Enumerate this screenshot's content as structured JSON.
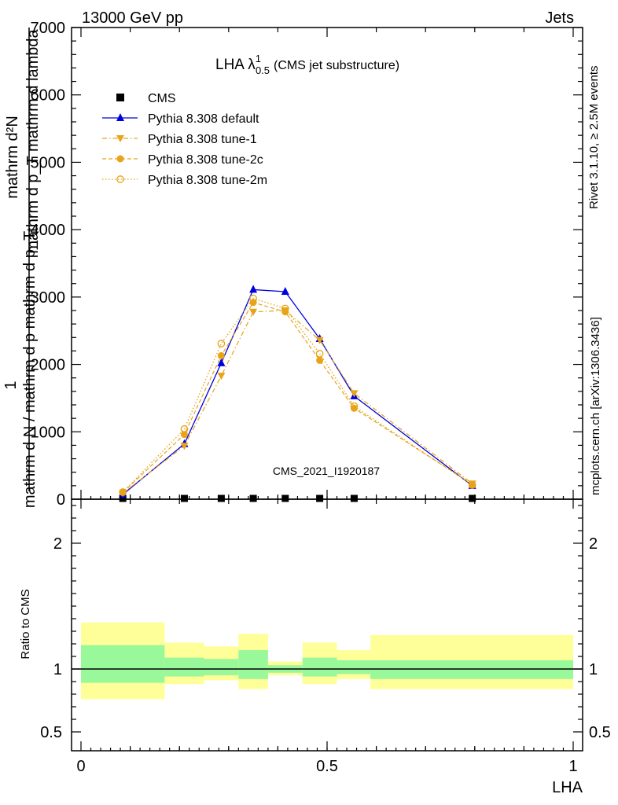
{
  "header": {
    "left": "13000 GeV pp",
    "right": "Jets"
  },
  "side_labels": {
    "rivet": "Rivet 3.1.10, ≥ 2.5M events",
    "mcplots": "mcplots.cern.ch [arXiv:1306.3436]"
  },
  "watermark": "CMS_2021_I1920187",
  "colors": {
    "cms": "#000000",
    "default": "#0000dd",
    "tunes": "#e8a317",
    "band_inner": "#99f899",
    "band_outer": "#ffff99"
  },
  "chart_data": [
    {
      "type": "line",
      "panel": "main",
      "title": "LHA λ",
      "title_sup": "1",
      "title_sub": "0.5",
      "title_note": "(CMS jet substructure)",
      "ylabel_top": "1",
      "ylabel_bottom": "mathrm d N / mathrm d p mathrm d p_T",
      "ylabel_numerator": "mathrm d²N",
      "ylabel_denominator": "mathrm d p_T mathrm d lambda",
      "xlim": [
        0,
        1
      ],
      "ylim": [
        0,
        7000
      ],
      "y_ticks": [
        0,
        1000,
        2000,
        3000,
        4000,
        5000,
        6000,
        7000
      ],
      "y_tick_labels": [
        "0",
        "1000",
        "2000",
        "3000",
        "4000",
        "5000",
        "6000",
        "7000"
      ],
      "legend_position": "top-left",
      "series": [
        {
          "name": "CMS",
          "marker": "square",
          "line": "none",
          "x": [
            0.085,
            0.21,
            0.285,
            0.35,
            0.415,
            0.485,
            0.555,
            0.795
          ],
          "y": [
            2,
            2,
            2,
            2,
            2,
            2,
            2,
            2
          ]
        },
        {
          "name": "Pythia 8.308 default",
          "marker": "triangle-up",
          "line": "solid",
          "x": [
            0.085,
            0.21,
            0.285,
            0.35,
            0.415,
            0.485,
            0.555,
            0.795
          ],
          "y": [
            70,
            820,
            2020,
            3110,
            3080,
            2380,
            1530,
            200
          ]
        },
        {
          "name": "Pythia 8.308 tune-1",
          "marker": "triangle-down",
          "line": "dashdot",
          "x": [
            0.085,
            0.21,
            0.285,
            0.35,
            0.415,
            0.485,
            0.555,
            0.795
          ],
          "y": [
            90,
            790,
            1830,
            2780,
            2800,
            2360,
            1570,
            230
          ]
        },
        {
          "name": "Pythia 8.308 tune-2c",
          "marker": "circle",
          "line": "dashed",
          "x": [
            0.085,
            0.21,
            0.285,
            0.35,
            0.415,
            0.485,
            0.555,
            0.795
          ],
          "y": [
            100,
            960,
            2130,
            2920,
            2780,
            2060,
            1350,
            220
          ]
        },
        {
          "name": "Pythia 8.308 tune-2m",
          "marker": "open-circle",
          "line": "dotted",
          "x": [
            0.085,
            0.21,
            0.285,
            0.35,
            0.415,
            0.485,
            0.555,
            0.795
          ],
          "y": [
            105,
            1040,
            2310,
            2980,
            2830,
            2160,
            1380,
            210
          ]
        }
      ]
    },
    {
      "type": "area",
      "panel": "ratio",
      "xlabel": "LHA",
      "ylabel": "Ratio to CMS",
      "xlim": [
        0,
        1
      ],
      "ylim": [
        0.35,
        2.35
      ],
      "x_ticks": [
        0,
        0.5,
        1
      ],
      "x_tick_labels": [
        "0",
        "0.5",
        "1"
      ],
      "y_ticks": [
        0.5,
        1,
        2
      ],
      "y_tick_labels": [
        "0.5",
        "1",
        "2"
      ],
      "reference_line": 1,
      "bins": [
        {
          "lo": 0.0,
          "hi": 0.17,
          "inner": [
            0.89,
            1.19
          ],
          "outer": [
            0.76,
            1.37
          ]
        },
        {
          "lo": 0.17,
          "hi": 0.25,
          "inner": [
            0.94,
            1.09
          ],
          "outer": [
            0.88,
            1.21
          ]
        },
        {
          "lo": 0.25,
          "hi": 0.32,
          "inner": [
            0.95,
            1.08
          ],
          "outer": [
            0.91,
            1.18
          ]
        },
        {
          "lo": 0.32,
          "hi": 0.38,
          "inner": [
            0.92,
            1.15
          ],
          "outer": [
            0.84,
            1.28
          ]
        },
        {
          "lo": 0.38,
          "hi": 0.45,
          "inner": [
            0.97,
            1.03
          ],
          "outer": [
            0.95,
            1.06
          ]
        },
        {
          "lo": 0.45,
          "hi": 0.52,
          "inner": [
            0.94,
            1.09
          ],
          "outer": [
            0.88,
            1.21
          ]
        },
        {
          "lo": 0.52,
          "hi": 0.588,
          "inner": [
            0.96,
            1.07
          ],
          "outer": [
            0.92,
            1.15
          ]
        },
        {
          "lo": 0.588,
          "hi": 1.0,
          "inner": [
            0.92,
            1.07
          ],
          "outer": [
            0.84,
            1.27
          ]
        }
      ]
    }
  ]
}
